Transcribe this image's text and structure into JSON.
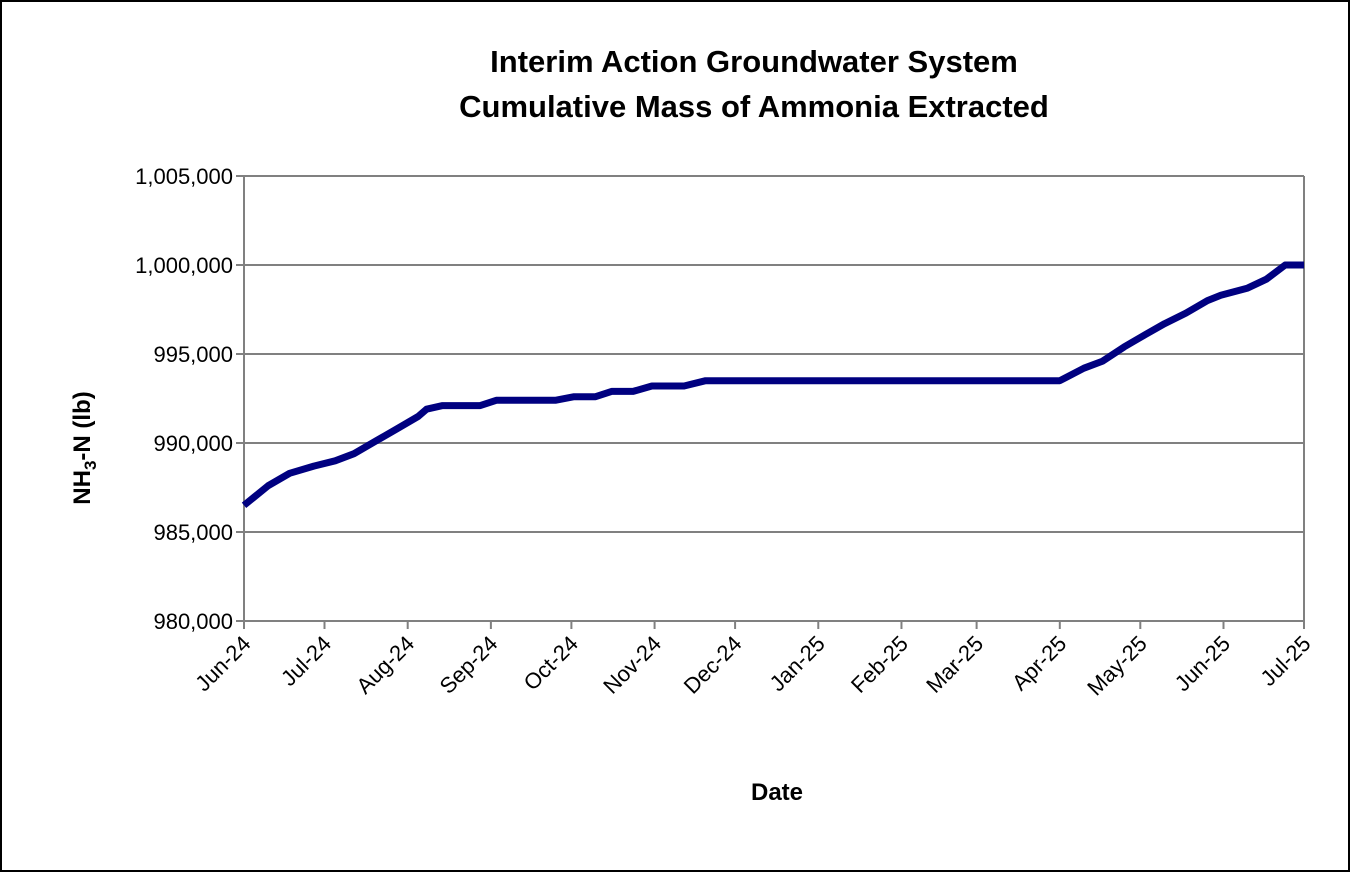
{
  "chart_data": {
    "type": "line",
    "title_lines": [
      "Interim Action Groundwater System",
      "Cumulative Mass of Ammonia Extracted"
    ],
    "xlabel": "Date",
    "ylabel": {
      "prefix": "NH",
      "subscript": "3",
      "suffix": "-N  (lb)"
    },
    "ylim": [
      980000,
      1005000
    ],
    "y_ticks": [
      {
        "value": 980000,
        "label": "980,000"
      },
      {
        "value": 985000,
        "label": "985,000"
      },
      {
        "value": 990000,
        "label": "990,000"
      },
      {
        "value": 995000,
        "label": "995,000"
      },
      {
        "value": 1000000,
        "label": "1,000,000"
      },
      {
        "value": 1005000,
        "label": "1,005,000"
      }
    ],
    "x_range": [
      "2024-06-01",
      "2025-07-01"
    ],
    "x_ticks": [
      {
        "date": "2024-06-01",
        "label": "Jun-24"
      },
      {
        "date": "2024-07-01",
        "label": "Jul-24"
      },
      {
        "date": "2024-08-01",
        "label": "Aug-24"
      },
      {
        "date": "2024-09-01",
        "label": "Sep-24"
      },
      {
        "date": "2024-10-01",
        "label": "Oct-24"
      },
      {
        "date": "2024-11-01",
        "label": "Nov-24"
      },
      {
        "date": "2024-12-01",
        "label": "Dec-24"
      },
      {
        "date": "2025-01-01",
        "label": "Jan-25"
      },
      {
        "date": "2025-02-01",
        "label": "Feb-25"
      },
      {
        "date": "2025-03-01",
        "label": "Mar-25"
      },
      {
        "date": "2025-04-01",
        "label": "Apr-25"
      },
      {
        "date": "2025-05-01",
        "label": "May-25"
      },
      {
        "date": "2025-06-01",
        "label": "Jun-25"
      },
      {
        "date": "2025-07-01",
        "label": "Jul-25"
      }
    ],
    "grid": true,
    "grid_axis": "y",
    "legend": "none",
    "series": [
      {
        "color": "#000080",
        "points": [
          {
            "x": "2024-06-01",
            "y": 986500
          },
          {
            "x": "2024-06-10",
            "y": 987600
          },
          {
            "x": "2024-06-18",
            "y": 988300
          },
          {
            "x": "2024-06-27",
            "y": 988700
          },
          {
            "x": "2024-07-05",
            "y": 989000
          },
          {
            "x": "2024-07-12",
            "y": 989400
          },
          {
            "x": "2024-07-20",
            "y": 990100
          },
          {
            "x": "2024-07-28",
            "y": 990800
          },
          {
            "x": "2024-08-05",
            "y": 991500
          },
          {
            "x": "2024-08-08",
            "y": 991900
          },
          {
            "x": "2024-08-14",
            "y": 992100
          },
          {
            "x": "2024-08-21",
            "y": 992100
          },
          {
            "x": "2024-08-28",
            "y": 992100
          },
          {
            "x": "2024-09-03",
            "y": 992400
          },
          {
            "x": "2024-09-10",
            "y": 992400
          },
          {
            "x": "2024-09-25",
            "y": 992400
          },
          {
            "x": "2024-10-02",
            "y": 992600
          },
          {
            "x": "2024-10-10",
            "y": 992600
          },
          {
            "x": "2024-10-16",
            "y": 992900
          },
          {
            "x": "2024-10-24",
            "y": 992900
          },
          {
            "x": "2024-10-31",
            "y": 993200
          },
          {
            "x": "2024-11-12",
            "y": 993200
          },
          {
            "x": "2024-11-20",
            "y": 993500
          },
          {
            "x": "2024-12-01",
            "y": 993500
          },
          {
            "x": "2025-04-01",
            "y": 993500
          },
          {
            "x": "2025-04-10",
            "y": 994200
          },
          {
            "x": "2025-04-17",
            "y": 994600
          },
          {
            "x": "2025-04-25",
            "y": 995400
          },
          {
            "x": "2025-05-03",
            "y": 996100
          },
          {
            "x": "2025-05-10",
            "y": 996700
          },
          {
            "x": "2025-05-18",
            "y": 997300
          },
          {
            "x": "2025-05-26",
            "y": 998000
          },
          {
            "x": "2025-05-31",
            "y": 998300
          },
          {
            "x": "2025-06-10",
            "y": 998700
          },
          {
            "x": "2025-06-17",
            "y": 999200
          },
          {
            "x": "2025-06-24",
            "y": 1000000
          },
          {
            "x": "2025-07-01",
            "y": 1000000
          }
        ]
      }
    ]
  }
}
